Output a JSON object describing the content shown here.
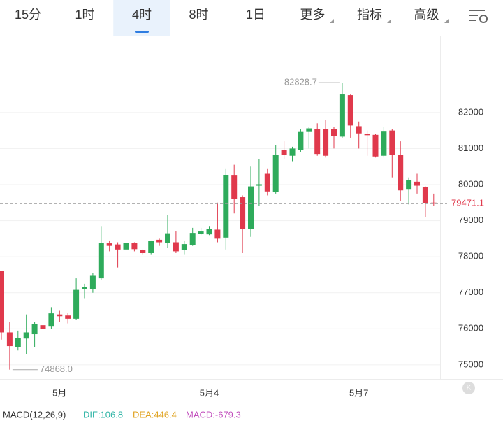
{
  "tabs": {
    "items": [
      "15分",
      "1时",
      "4时",
      "8时",
      "1日",
      "更多",
      "指标",
      "高级"
    ],
    "active": 2
  },
  "chart_data": {
    "type": "candlestick",
    "categories": [
      null,
      null,
      null,
      null,
      null,
      null,
      null,
      "5月",
      null,
      null,
      null,
      null,
      null,
      null,
      null,
      null,
      null,
      null,
      null,
      null,
      null,
      null,
      null,
      null,
      null,
      "5月4",
      null,
      null,
      null,
      null,
      null,
      null,
      null,
      null,
      null,
      null,
      null,
      null,
      null,
      null,
      null,
      null,
      null,
      "5月7",
      null,
      null,
      null,
      null,
      null,
      null,
      null,
      null,
      null
    ],
    "open": [
      77600,
      75900,
      75500,
      75730,
      75850,
      76100,
      76080,
      76400,
      76370,
      76280,
      77100,
      77100,
      77400,
      78370,
      78340,
      78200,
      78380,
      78180,
      78100,
      78470,
      78380,
      78400,
      78180,
      78330,
      78630,
      78620,
      78750,
      78530,
      80250,
      79650,
      78760,
      79970,
      80300,
      79790,
      80950,
      80800,
      80950,
      81460,
      81540,
      81540,
      81550,
      81330,
      82480,
      81620,
      81400,
      81380,
      80800,
      81500,
      80820,
      79860,
      80080,
      79930,
      79500
    ],
    "high": [
      77600,
      76200,
      75950,
      76400,
      76200,
      76200,
      76600,
      76500,
      76450,
      77400,
      77250,
      77550,
      78850,
      78450,
      78400,
      78450,
      78400,
      78200,
      78450,
      78500,
      79150,
      78700,
      78450,
      78800,
      78800,
      78850,
      79500,
      80450,
      80550,
      79700,
      80500,
      80700,
      80450,
      81100,
      81200,
      81050,
      81550,
      81600,
      81700,
      81800,
      81600,
      82828.7,
      82500,
      81750,
      81500,
      81400,
      81600,
      81550,
      81200,
      80200,
      80300,
      79950,
      79750
    ],
    "low": [
      75700,
      74868,
      75400,
      75300,
      75500,
      75950,
      76000,
      76200,
      76150,
      76250,
      76850,
      77000,
      77350,
      78150,
      77700,
      78150,
      78150,
      78050,
      78050,
      78300,
      78250,
      78100,
      78050,
      78300,
      78600,
      78600,
      78400,
      78200,
      79200,
      78100,
      78550,
      79400,
      79700,
      79750,
      80700,
      80650,
      80900,
      81000,
      80800,
      80750,
      81000,
      81300,
      81300,
      81000,
      80800,
      80750,
      80750,
      80200,
      79550,
      79450,
      79750,
      79100,
      79400
    ],
    "close": [
      75900,
      75520,
      75750,
      75900,
      76130,
      76000,
      76430,
      76350,
      76280,
      77080,
      77150,
      77470,
      78380,
      78300,
      78200,
      78380,
      78210,
      78100,
      78430,
      78400,
      78650,
      78150,
      78350,
      78660,
      78700,
      78760,
      78500,
      80270,
      79600,
      78760,
      79950,
      80010,
      79810,
      80820,
      80820,
      81000,
      81460,
      81560,
      80850,
      80800,
      81350,
      82500,
      81640,
      81420,
      81370,
      80780,
      81470,
      80830,
      79840,
      80120,
      79970,
      79480,
      79471.1
    ],
    "up_color": "#2eab5b",
    "down_color": "#e0394c",
    "ylim": [
      74610,
      84110
    ],
    "yticks": [
      75000,
      76000,
      77000,
      78000,
      79000,
      80000,
      81000,
      82000
    ],
    "grid": true,
    "max_label": 82828.7,
    "min_label": {
      "value": 74868,
      "label": "74868.0"
    },
    "last_price": 79471.1
  },
  "macd": {
    "name": "MACD(12,26,9)",
    "dif": "DIF:106.8",
    "dea": "DEA:446.4",
    "macd": "MACD:-679.3"
  }
}
